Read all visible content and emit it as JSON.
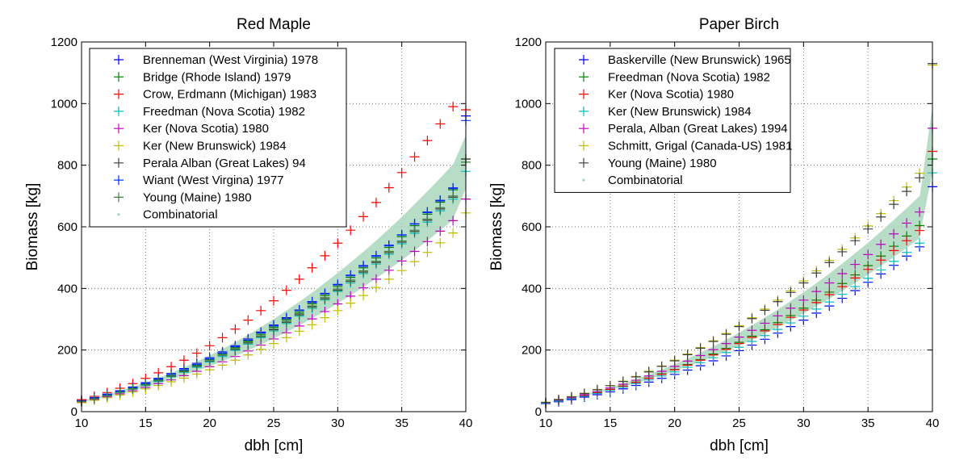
{
  "chart_data": [
    {
      "type": "scatter",
      "title": "Red Maple",
      "xlabel": "dbh [cm]",
      "ylabel": "Biomass [kg]",
      "xlim": [
        10,
        40
      ],
      "ylim": [
        0,
        1200
      ],
      "xticks": [
        "10",
        "15",
        "20",
        "25",
        "30",
        "35",
        "40"
      ],
      "yticks": [
        "0",
        "200",
        "400",
        "600",
        "800",
        "1000",
        "1200"
      ],
      "grid": true,
      "legend_position": "top-left",
      "x": [
        10,
        11,
        12,
        13,
        14,
        15,
        16,
        17,
        18,
        19,
        20,
        21,
        22,
        23,
        24,
        25,
        26,
        27,
        28,
        29,
        30,
        31,
        32,
        33,
        34,
        35,
        36,
        37,
        38,
        39,
        40
      ],
      "series": [
        {
          "name": "Brenneman (West Virginia) 1978",
          "color": "#0000ff",
          "values": [
            36,
            46,
            57,
            68,
            80,
            94,
            108,
            124,
            140,
            157,
            175,
            194,
            214,
            236,
            258,
            281,
            305,
            330,
            357,
            384,
            413,
            443,
            474,
            506,
            540,
            574,
            610,
            648,
            686,
            726,
            960
          ]
        },
        {
          "name": "Bridge (Rhode Island) 1979",
          "color": "#008000",
          "values": [
            34,
            43,
            53,
            64,
            76,
            89,
            103,
            118,
            134,
            151,
            169,
            188,
            208,
            229,
            251,
            274,
            298,
            323,
            350,
            377,
            406,
            436,
            467,
            499,
            533,
            568,
            604,
            641,
            680,
            720,
            820
          ]
        },
        {
          "name": "Crow, Erdmann (Michigan) 1983",
          "color": "#ff0000",
          "values": [
            39,
            50,
            62,
            76,
            91,
            108,
            126,
            146,
            167,
            190,
            214,
            240,
            268,
            297,
            328,
            360,
            394,
            430,
            467,
            506,
            547,
            589,
            633,
            679,
            727,
            776,
            827,
            880,
            934,
            990,
            980
          ]
        },
        {
          "name": "Freedman (Nova Scotia) 1982",
          "color": "#00bfbf",
          "values": [
            34,
            42,
            52,
            62,
            73,
            85,
            98,
            113,
            128,
            144,
            161,
            179,
            199,
            219,
            240,
            262,
            286,
            310,
            335,
            362,
            390,
            418,
            448,
            479,
            511,
            545,
            579,
            615,
            652,
            690,
            780
          ]
        },
        {
          "name": "Ker (Nova Scotia) 1980",
          "color": "#bf00bf",
          "values": [
            31,
            39,
            48,
            58,
            68,
            79,
            91,
            103,
            117,
            131,
            146,
            162,
            179,
            197,
            216,
            236,
            256,
            278,
            301,
            325,
            350,
            375,
            402,
            430,
            459,
            489,
            520,
            552,
            586,
            620,
            690
          ]
        },
        {
          "name": "Ker (New Brunswick) 1984",
          "color": "#bfbf00",
          "values": [
            29,
            37,
            45,
            54,
            64,
            74,
            85,
            97,
            109,
            122,
            136,
            151,
            167,
            184,
            202,
            221,
            240,
            261,
            282,
            305,
            328,
            352,
            377,
            403,
            430,
            458,
            487,
            517,
            548,
            580,
            645
          ]
        },
        {
          "name": "Perala Alban (Great Lakes) 94",
          "color": "#3f3f3f",
          "values": [
            33,
            42,
            52,
            63,
            74,
            87,
            100,
            115,
            130,
            147,
            164,
            183,
            202,
            223,
            244,
            266,
            290,
            314,
            340,
            366,
            394,
            423,
            453,
            484,
            516,
            550,
            585,
            621,
            658,
            696,
            820
          ]
        },
        {
          "name": "Wiant (West Virgina) 1977",
          "color": "#0033ff",
          "values": [
            35,
            44,
            55,
            66,
            78,
            91,
            105,
            120,
            136,
            153,
            171,
            190,
            211,
            232,
            255,
            278,
            302,
            328,
            354,
            382,
            411,
            441,
            472,
            504,
            538,
            573,
            609,
            646,
            684,
            724,
            945
          ]
        },
        {
          "name": "Young (Maine) 1980",
          "color": "#3f7f3f",
          "values": [
            33,
            42,
            52,
            63,
            75,
            88,
            101,
            116,
            131,
            148,
            165,
            184,
            204,
            225,
            246,
            269,
            293,
            318,
            343,
            370,
            398,
            427,
            457,
            488,
            520,
            554,
            589,
            625,
            662,
            700,
            810
          ]
        },
        {
          "name": "Combinatorial",
          "color": "#a6d5b8",
          "band_low": [
            30,
            38,
            47,
            57,
            67,
            78,
            90,
            103,
            116,
            131,
            146,
            162,
            179,
            197,
            216,
            236,
            257,
            278,
            301,
            325,
            350,
            376,
            403,
            431,
            460,
            490,
            521,
            553,
            587,
            621,
            720
          ],
          "band_high": [
            36,
            46,
            57,
            69,
            82,
            96,
            111,
            127,
            145,
            164,
            184,
            205,
            227,
            251,
            276,
            302,
            330,
            358,
            388,
            420,
            452,
            486,
            521,
            557,
            595,
            634,
            675,
            717,
            760,
            805,
            900
          ]
        }
      ]
    },
    {
      "type": "scatter",
      "title": "Paper Birch",
      "xlabel": "dbh [cm]",
      "ylabel": "Biomass [kg]",
      "xlim": [
        10,
        40
      ],
      "ylim": [
        0,
        1200
      ],
      "xticks": [
        "10",
        "15",
        "20",
        "25",
        "30",
        "35",
        "40"
      ],
      "yticks": [
        "0",
        "200",
        "400",
        "600",
        "800",
        "1000",
        "1200"
      ],
      "grid": true,
      "legend_position": "top-left",
      "x": [
        10,
        11,
        12,
        13,
        14,
        15,
        16,
        17,
        18,
        19,
        20,
        21,
        22,
        23,
        24,
        25,
        26,
        27,
        28,
        29,
        30,
        31,
        32,
        33,
        34,
        35,
        36,
        37,
        38,
        39,
        40
      ],
      "series": [
        {
          "name": "Baskerville (New Brunswick) 1965",
          "color": "#0000ff",
          "values": [
            26,
            32,
            39,
            47,
            55,
            64,
            74,
            85,
            96,
            108,
            121,
            135,
            149,
            165,
            181,
            198,
            216,
            235,
            255,
            276,
            297,
            320,
            343,
            368,
            393,
            420,
            447,
            475,
            505,
            535,
            730
          ]
        },
        {
          "name": "Freedman (Nova Scotia) 1982",
          "color": "#008000",
          "values": [
            28,
            35,
            43,
            52,
            62,
            72,
            83,
            96,
            109,
            123,
            137,
            153,
            169,
            187,
            205,
            225,
            245,
            266,
            289,
            312,
            336,
            362,
            388,
            416,
            444,
            474,
            505,
            537,
            570,
            604,
            820
          ]
        },
        {
          "name": "Ker (Nova Scotia) 1980",
          "color": "#ff0000",
          "values": [
            28,
            35,
            43,
            52,
            61,
            72,
            83,
            95,
            108,
            121,
            136,
            151,
            167,
            184,
            202,
            221,
            241,
            262,
            283,
            306,
            330,
            354,
            380,
            406,
            434,
            462,
            492,
            523,
            555,
            588,
            845
          ]
        },
        {
          "name": "Ker (New Brunswick) 1984",
          "color": "#00bfbf",
          "values": [
            27,
            34,
            42,
            50,
            59,
            69,
            79,
            91,
            103,
            116,
            129,
            144,
            159,
            175,
            192,
            209,
            228,
            247,
            267,
            288,
            310,
            333,
            356,
            381,
            406,
            433,
            460,
            488,
            517,
            547,
            775
          ]
        },
        {
          "name": "Perala, Alban (Great Lakes) 1994",
          "color": "#bf00bf",
          "values": [
            29,
            37,
            45,
            55,
            65,
            77,
            89,
            102,
            116,
            131,
            147,
            164,
            182,
            201,
            221,
            242,
            264,
            287,
            311,
            336,
            362,
            390,
            418,
            448,
            478,
            510,
            543,
            577,
            612,
            648,
            920
          ]
        },
        {
          "name": "Schmitt, Grigal (Canada-US) 1981",
          "color": "#bfbf00",
          "values": [
            31,
            40,
            49,
            60,
            72,
            85,
            99,
            114,
            131,
            148,
            167,
            187,
            208,
            230,
            254,
            279,
            305,
            333,
            362,
            392,
            424,
            457,
            491,
            527,
            564,
            603,
            643,
            685,
            729,
            774,
            1125
          ]
        },
        {
          "name": "Young (Maine) 1980",
          "color": "#3f3f3f",
          "values": [
            30,
            39,
            48,
            59,
            71,
            84,
            98,
            113,
            129,
            147,
            165,
            185,
            206,
            228,
            251,
            276,
            302,
            329,
            357,
            387,
            418,
            450,
            484,
            519,
            555,
            593,
            632,
            673,
            715,
            759,
            1130
          ]
        },
        {
          "name": "Combinatorial",
          "color": "#a6d5b8",
          "band_low": [
            27,
            34,
            41,
            50,
            59,
            69,
            80,
            91,
            104,
            117,
            131,
            146,
            161,
            178,
            195,
            213,
            232,
            252,
            273,
            295,
            317,
            341,
            365,
            390,
            416,
            443,
            471,
            500,
            530,
            561,
            770
          ],
          "band_high": [
            30,
            38,
            47,
            57,
            68,
            80,
            93,
            107,
            122,
            138,
            155,
            173,
            193,
            213,
            235,
            258,
            282,
            307,
            333,
            361,
            389,
            419,
            450,
            482,
            516,
            550,
            586,
            624,
            662,
            702,
            1000
          ]
        }
      ]
    }
  ]
}
